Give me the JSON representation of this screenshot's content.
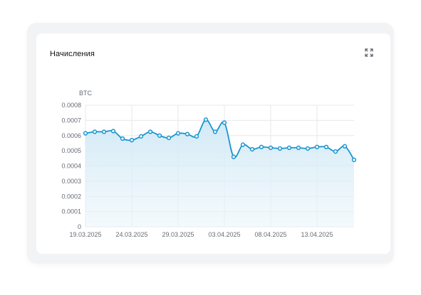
{
  "widget": {
    "title": "Начисления",
    "expand_icon": "expand-icon"
  },
  "chart_data": {
    "type": "area",
    "ylabel": "BTC",
    "ylim": [
      0,
      0.0008
    ],
    "y_ticks": [
      "0",
      "0.0001",
      "0.0002",
      "0.0003",
      "0.0004",
      "0.0005",
      "0.0006",
      "0.0007",
      "0.0008"
    ],
    "x_tick_labels": [
      "19.03.2025",
      "24.03.2025",
      "29.03.2025",
      "03.04.2025",
      "08.04.2025",
      "13.04.2025"
    ],
    "x": [
      "19.03.2025",
      "20.03.2025",
      "21.03.2025",
      "22.03.2025",
      "23.03.2025",
      "24.03.2025",
      "25.03.2025",
      "26.03.2025",
      "27.03.2025",
      "28.03.2025",
      "29.03.2025",
      "30.03.2025",
      "31.03.2025",
      "01.04.2025",
      "02.04.2025",
      "03.04.2025",
      "04.04.2025",
      "05.04.2025",
      "06.04.2025",
      "07.04.2025",
      "08.04.2025",
      "09.04.2025",
      "10.04.2025",
      "11.04.2025",
      "12.04.2025",
      "13.04.2025",
      "14.04.2025",
      "15.04.2025",
      "16.04.2025",
      "17.04.2025"
    ],
    "values": [
      0.000615,
      0.000625,
      0.000625,
      0.00063,
      0.00058,
      0.00057,
      0.000595,
      0.000625,
      0.0006,
      0.000585,
      0.000615,
      0.00061,
      0.000595,
      0.000705,
      0.000625,
      0.000685,
      0.00046,
      0.00054,
      0.00051,
      0.000525,
      0.00052,
      0.000515,
      0.00052,
      0.00052,
      0.000515,
      0.000525,
      0.000525,
      0.000495,
      0.00053,
      0.00044
    ],
    "grid": true,
    "colors": {
      "line": "#1a95cf",
      "area": "#d6ecf7",
      "grid": "#e6e8eb",
      "marker_fill": "#ffffff"
    }
  }
}
